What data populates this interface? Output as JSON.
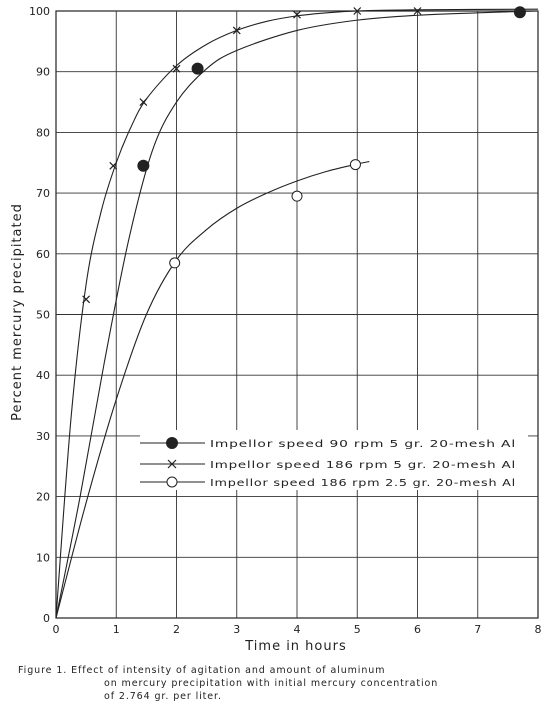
{
  "chart_data": {
    "type": "line",
    "title": "",
    "xlabel": "Time in hours",
    "ylabel": "Percent mercury precipitated",
    "xlim": [
      0,
      8
    ],
    "ylim": [
      0,
      100
    ],
    "xticks": [
      "0",
      "1",
      "2",
      "3",
      "4",
      "5",
      "6",
      "7",
      "8"
    ],
    "yticks": [
      "0",
      "10",
      "20",
      "30",
      "40",
      "50",
      "60",
      "70",
      "80",
      "90",
      "100"
    ],
    "grid": true,
    "legend_position": "lower-right",
    "series": [
      {
        "name": "Impellor speed 90 rpm 5 gr. 20-mesh Al",
        "marker": "filled-circle",
        "points": [
          [
            1.45,
            74.5
          ],
          [
            2.35,
            90.5
          ],
          [
            7.7,
            99.8
          ]
        ],
        "curve": [
          [
            0,
            0
          ],
          [
            0.4,
            20
          ],
          [
            0.8,
            42
          ],
          [
            1.2,
            62
          ],
          [
            1.6,
            77
          ],
          [
            2.0,
            85
          ],
          [
            2.5,
            90.5
          ],
          [
            3.0,
            93.5
          ],
          [
            4.0,
            96.8
          ],
          [
            5.0,
            98.5
          ],
          [
            6.0,
            99.3
          ],
          [
            7.0,
            99.7
          ],
          [
            8.0,
            100
          ]
        ]
      },
      {
        "name": "Impellor speed 186 rpm 5 gr. 20-mesh Al",
        "marker": "x",
        "points": [
          [
            0.5,
            52.5
          ],
          [
            0.95,
            74.5
          ],
          [
            1.45,
            85
          ],
          [
            2.0,
            90.5
          ],
          [
            3.0,
            96.8
          ],
          [
            4.0,
            99.4
          ],
          [
            5.0,
            100
          ],
          [
            6.0,
            100
          ]
        ],
        "curve": [
          [
            0,
            0
          ],
          [
            0.25,
            33
          ],
          [
            0.5,
            55
          ],
          [
            0.75,
            67
          ],
          [
            1.0,
            75
          ],
          [
            1.25,
            81
          ],
          [
            1.5,
            85.5
          ],
          [
            2.0,
            91
          ],
          [
            2.5,
            94.5
          ],
          [
            3.0,
            96.8
          ],
          [
            3.5,
            98.3
          ],
          [
            4.0,
            99.2
          ],
          [
            4.5,
            99.7
          ],
          [
            5.0,
            100
          ],
          [
            6.0,
            100.2
          ],
          [
            8.0,
            100.3
          ]
        ]
      },
      {
        "name": "Impellor speed 186 rpm 2.5 gr. 20-mesh Al",
        "marker": "open-circle",
        "points": [
          [
            1.97,
            58.5
          ],
          [
            4.0,
            69.5
          ],
          [
            4.97,
            74.7
          ]
        ],
        "curve": [
          [
            0,
            0
          ],
          [
            0.5,
            19
          ],
          [
            1.0,
            36
          ],
          [
            1.5,
            50
          ],
          [
            2.0,
            59
          ],
          [
            2.5,
            64
          ],
          [
            3.0,
            67.5
          ],
          [
            3.5,
            70
          ],
          [
            4.0,
            72
          ],
          [
            4.5,
            73.6
          ],
          [
            5.0,
            74.8
          ],
          [
            5.2,
            75.2
          ]
        ]
      }
    ]
  },
  "caption": {
    "line1": "Figure 1.   Effect of intensity of agitation and amount of aluminum",
    "line2": "on mercury precipitation with initial mercury concentration",
    "line3": "of 2.764 gr. per liter."
  }
}
